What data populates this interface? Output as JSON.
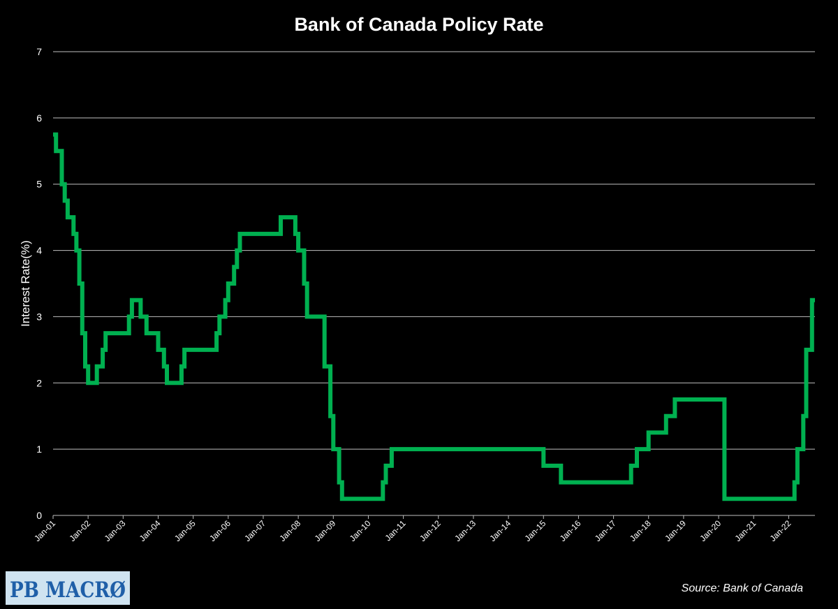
{
  "chart_data": {
    "type": "line",
    "step": true,
    "title": "Bank of Canada Policy Rate",
    "ylabel": "Interest Rate(%)",
    "xlabel": "",
    "ylim": [
      0,
      7
    ],
    "yticks": [
      "0",
      "1",
      "2",
      "3",
      "4",
      "5",
      "6",
      "7"
    ],
    "xlim": [
      "2001-01",
      "2022-10"
    ],
    "xticks": [
      "Jan-01",
      "Jan-02",
      "Jan-03",
      "Jan-04",
      "Jan-05",
      "Jan-06",
      "Jan-07",
      "Jan-08",
      "Jan-09",
      "Jan-10",
      "Jan-11",
      "Jan-12",
      "Jan-13",
      "Jan-14",
      "Jan-15",
      "Jan-16",
      "Jan-17",
      "Jan-18",
      "Jan-19",
      "Jan-20",
      "Jan-21",
      "Jan-22"
    ],
    "grid": true,
    "line_color": "#00b050",
    "series": [
      {
        "name": "",
        "x": [
          "2001-01",
          "2001-02",
          "2001-04",
          "2001-05",
          "2001-06",
          "2001-08",
          "2001-09",
          "2001-10",
          "2001-11",
          "2001-12",
          "2002-01",
          "2002-04",
          "2002-06",
          "2002-07",
          "2003-03",
          "2003-04",
          "2003-07",
          "2003-09",
          "2004-01",
          "2004-03",
          "2004-04",
          "2004-09",
          "2004-10",
          "2005-09",
          "2005-10",
          "2005-12",
          "2006-01",
          "2006-03",
          "2006-04",
          "2006-05",
          "2007-07",
          "2007-12",
          "2008-01",
          "2008-03",
          "2008-04",
          "2008-10",
          "2008-12",
          "2009-01",
          "2009-03",
          "2009-04",
          "2010-06",
          "2010-07",
          "2010-09",
          "2014-12",
          "2015-01",
          "2015-07",
          "2017-07",
          "2017-09",
          "2018-01",
          "2018-07",
          "2018-10",
          "2020-03",
          "2022-03",
          "2022-04",
          "2022-06",
          "2022-07",
          "2022-09",
          "2022-10"
        ],
        "y": [
          5.75,
          5.5,
          5.0,
          4.75,
          4.5,
          4.25,
          4.0,
          3.5,
          2.75,
          2.25,
          2.0,
          2.25,
          2.5,
          2.75,
          3.0,
          3.25,
          3.0,
          2.75,
          2.5,
          2.25,
          2.0,
          2.25,
          2.5,
          2.75,
          3.0,
          3.25,
          3.5,
          3.75,
          4.0,
          4.25,
          4.5,
          4.25,
          4.0,
          3.5,
          3.0,
          2.25,
          1.5,
          1.0,
          0.5,
          0.25,
          0.5,
          0.75,
          1.0,
          1.0,
          0.75,
          0.5,
          0.75,
          1.0,
          1.25,
          1.5,
          1.75,
          0.25,
          0.5,
          1.0,
          1.5,
          2.5,
          3.25,
          3.25
        ]
      }
    ],
    "source": "Source: Bank of Canada"
  },
  "logo": {
    "text": "PB MACRØ",
    "color": "#1f5fa8",
    "background": "#cfe3f0"
  }
}
